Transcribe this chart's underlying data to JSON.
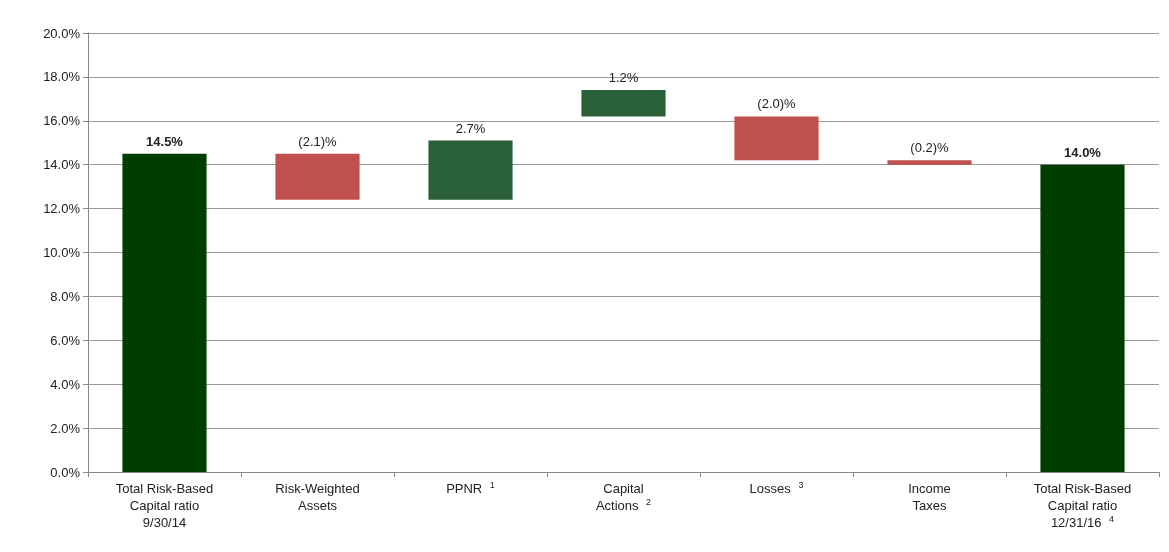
{
  "chart_data": {
    "type": "bar",
    "categories": [
      "Total Risk-Based\nCapital ratio\n9/30/14",
      "Risk-Weighted\nAssets",
      "PPNR $^{1}$",
      "Capital\nActions $^{2}$",
      "Losses $^{3}$",
      "Income\nTaxes",
      "Total Risk-Based\nCapital ratio\n12/31/16 $^{4}$"
    ],
    "values": [
      14.5,
      -2.1,
      2.7,
      1.2,
      -2.0,
      -0.2,
      14.0
    ],
    "base": [
      0,
      14.5,
      12.4,
      16.2,
      16.2,
      14.2,
      0
    ],
    "colors": [
      "#003d00",
      "#c0504d",
      "#2a6038",
      "#2a6038",
      "#c0504d",
      "#c0504d",
      "#003d00"
    ],
    "value_labels": [
      "14.5%",
      "(2.1)%",
      "2.7%",
      "1.2%",
      "(2.0)%",
      "(0.2)%",
      "14.0%"
    ],
    "ylim": [
      0,
      20
    ],
    "yticks": [
      {
        "value": 0,
        "label": "0.0%"
      },
      {
        "value": 2,
        "label": "2.0%"
      },
      {
        "value": 4,
        "label": "4.0%"
      },
      {
        "value": 6,
        "label": "6.0%"
      },
      {
        "value": 8,
        "label": "8.0%"
      },
      {
        "value": 10,
        "label": "10.0%"
      },
      {
        "value": 12,
        "label": "12.0%"
      },
      {
        "value": 14,
        "label": "14.0%"
      },
      {
        "value": 16,
        "label": "16.0%"
      },
      {
        "value": 18,
        "label": "18.0%"
      },
      {
        "value": 20,
        "label": "20.0%"
      }
    ],
    "grid": "y"
  }
}
